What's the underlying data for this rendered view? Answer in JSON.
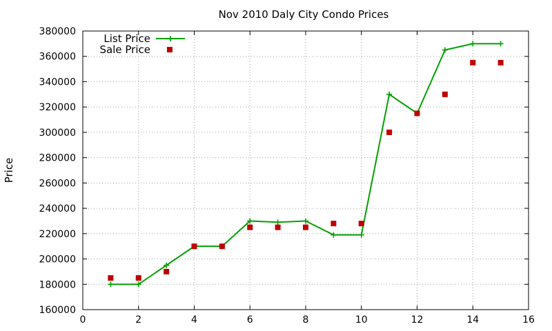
{
  "chart_data": {
    "type": "line",
    "title": "Nov 2010 Daly City Condo Prices",
    "xlabel": "",
    "ylabel": "Price",
    "xlim": [
      0,
      16
    ],
    "ylim": [
      160000,
      380000
    ],
    "x_ticks": [
      0,
      2,
      4,
      6,
      8,
      10,
      12,
      14,
      16
    ],
    "y_ticks": [
      160000,
      180000,
      200000,
      220000,
      240000,
      260000,
      280000,
      300000,
      320000,
      340000,
      360000,
      380000
    ],
    "grid": true,
    "legend_position": "top-left",
    "series": [
      {
        "name": "List Price",
        "style": "line-with-plus-markers",
        "color": "#00a000",
        "x": [
          1,
          2,
          3,
          4,
          5,
          6,
          7,
          8,
          9,
          10,
          11,
          12,
          13,
          14,
          15
        ],
        "y": [
          180000,
          180000,
          195000,
          210000,
          210000,
          230000,
          229000,
          230000,
          219000,
          219000,
          330000,
          315000,
          365000,
          370000,
          370000
        ]
      },
      {
        "name": "Sale Price",
        "style": "square-markers",
        "color": "#c00000",
        "x": [
          1,
          2,
          3,
          4,
          5,
          6,
          7,
          8,
          9,
          10,
          11,
          12,
          13,
          14,
          15
        ],
        "y": [
          185000,
          185000,
          190000,
          210000,
          210000,
          225000,
          225000,
          225000,
          228000,
          228000,
          300000,
          315000,
          330000,
          355000,
          355000
        ]
      }
    ]
  }
}
